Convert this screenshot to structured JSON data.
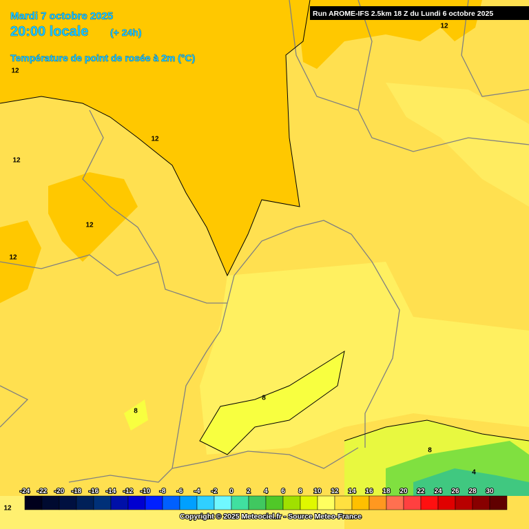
{
  "header": {
    "date": "Mardi 7 octobre 2025",
    "time": "20:00 locale",
    "lead": "(+ 24h)",
    "parameter": "Température de point de rosée à 2m (°C)",
    "run": "Run AROME-IFS 2.5km 18 Z du Lundi 6 octobre 2025"
  },
  "contour_labels": [
    "12",
    "12",
    "12",
    "12",
    "12",
    "12",
    "12",
    "8",
    "8",
    "8",
    "4"
  ],
  "legend": {
    "stops": [
      {
        "value": -24,
        "color": "#00001c"
      },
      {
        "value": -22,
        "color": "#000a30"
      },
      {
        "value": -20,
        "color": "#001040"
      },
      {
        "value": -18,
        "color": "#002058"
      },
      {
        "value": -16,
        "color": "#003078"
      },
      {
        "value": -14,
        "color": "#0010a8"
      },
      {
        "value": -12,
        "color": "#0000d0"
      },
      {
        "value": -10,
        "color": "#0020ff"
      },
      {
        "value": -8,
        "color": "#0060ff"
      },
      {
        "value": -6,
        "color": "#00a0ff"
      },
      {
        "value": -4,
        "color": "#30d0ff"
      },
      {
        "value": -2,
        "color": "#70f8ff"
      },
      {
        "value": 0,
        "color": "#40e0a0"
      },
      {
        "value": 2,
        "color": "#40c860"
      },
      {
        "value": 4,
        "color": "#50c828"
      },
      {
        "value": 6,
        "color": "#a0e000"
      },
      {
        "value": 8,
        "color": "#e0f800"
      },
      {
        "value": 10,
        "color": "#ffff60"
      },
      {
        "value": 12,
        "color": "#ffe040"
      },
      {
        "value": 14,
        "color": "#ffc000"
      },
      {
        "value": 16,
        "color": "#ff9820"
      },
      {
        "value": 18,
        "color": "#ff7050"
      },
      {
        "value": 20,
        "color": "#ff4040"
      },
      {
        "value": 22,
        "color": "#ff1010"
      },
      {
        "value": 24,
        "color": "#e00000"
      },
      {
        "value": 26,
        "color": "#b80000"
      },
      {
        "value": 28,
        "color": "#880000"
      },
      {
        "value": 30,
        "color": "#600000"
      }
    ]
  },
  "copyright": "Copyright © 2025 Meteociel.fr - Source Meteo-France"
}
